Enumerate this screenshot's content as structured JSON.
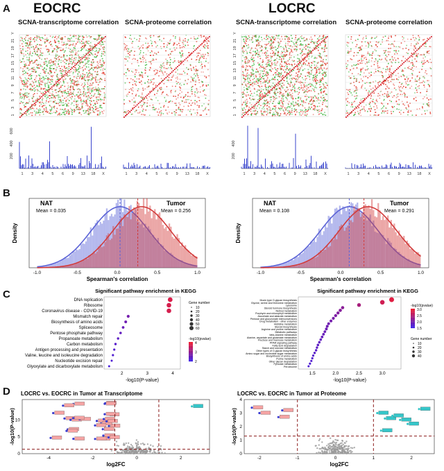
{
  "panel_letters": [
    "A",
    "B",
    "C",
    "D"
  ],
  "panelA": {
    "groups": [
      {
        "title": "EOCRC",
        "titles": [
          "SCNA-transcriptome correlation",
          "SCNA-proteome correlation"
        ],
        "hist_ticks": [
          "200",
          "400",
          "600"
        ]
      },
      {
        "title": "LOCRC",
        "titles": [
          "SCNA-transcriptome correlation",
          "SCNA-proteome correlation"
        ],
        "hist_ticks": [
          "200",
          "400"
        ]
      }
    ],
    "chrom_y_labels": [
      "1",
      "3",
      "5",
      "7",
      "9",
      "11",
      "13",
      "15",
      "17",
      "19",
      "21",
      "Y"
    ],
    "chrom_x_labels": [
      "1",
      "3",
      "4",
      "5",
      "6",
      "9",
      "13",
      "18",
      "X"
    ]
  },
  "panelB": {
    "plots": [
      {
        "nat_label": "NAT",
        "nat_mean": "Mean = 0.035",
        "tumor_label": "Tumor",
        "tumor_mean": "Mean = 0.256",
        "nat_mean_val": 0.035,
        "tumor_mean_val": 0.256
      },
      {
        "nat_label": "NAT",
        "nat_mean": "Mean = 0.108",
        "tumor_label": "Tumor",
        "tumor_mean": "Mean = 0.291",
        "nat_mean_val": 0.108,
        "tumor_mean_val": 0.291
      }
    ],
    "ylabel": "Density",
    "xlabel": "Spearman's correlation",
    "xticks": [
      "-1.0",
      "-0.5",
      "0.0",
      "0.5",
      "1.0"
    ],
    "colors": {
      "nat": "#5b63d6",
      "tumor": "#d23b3b"
    }
  },
  "panelC": {
    "title": "Significant pathway enrichment in KEGG",
    "xlabel": "-log10(P-value)",
    "left": {
      "pathways": [
        "DNA replication",
        "Ribosome",
        "Coronavirus disease - COVID-19",
        "Mismatch repair",
        "Biosynthesis of amino acids",
        "Spliceosome",
        "Pentose phosphate pathway",
        "Propanoate metabolism",
        "Carbon metabolism",
        "Antigen processing and presentation",
        "Valine, leucine and isoleucine degradation",
        "Nucleotide excision repair",
        "Glyoxylate and dicarboxylate metabolism"
      ],
      "values": [
        3.9,
        3.85,
        3.85,
        2.25,
        2.15,
        2.05,
        1.95,
        1.85,
        1.75,
        1.7,
        1.65,
        1.6,
        1.5
      ],
      "xticks": [
        "2",
        "3",
        "4"
      ],
      "legend_size_title": "Gene number",
      "legend_sizes": [
        "10",
        "20",
        "30",
        "40",
        "50",
        "60"
      ],
      "legend_color_title": "-log10(pvalue)",
      "legend_color_ticks": [
        "4",
        "3",
        "2"
      ]
    },
    "right": {
      "pathways": [
        "Mucin type O-glycan biosynthesis",
        "Glycine, serine and threonine metabolism",
        "Lysosome",
        "Steroid hormone biosynthesis",
        "Retinol metabolism",
        "Porphyrin and chlorophyll metabolism",
        "Ascorbate and aldarate metabolism",
        "Pentose and glucuronate interconversions",
        "Drug metabolism - other enzymes",
        "Histidine metabolism",
        "Steroid biosynthesis",
        "Arginine and proline metabolism",
        "Metabolic pathways",
        "beta-Alanine metabolism",
        "Alanine, aspartate and glutamate metabolism",
        "Fructose and mannose metabolism",
        "PPAR signaling pathway",
        "Fatty acid degradation",
        "Starch and sucrose metabolism",
        "Other types of O-glycan biosynthesis",
        "Amino sugar and nucleotide sugar metabolism",
        "Biosynthesis of amino acids",
        "Purine metabolism",
        "Other glycan degradation",
        "Pyruvate metabolism",
        "Peroxisome"
      ],
      "values": [
        3.2,
        3.0,
        2.5,
        2.15,
        2.1,
        2.05,
        2.0,
        1.95,
        1.9,
        1.85,
        1.82,
        1.8,
        1.77,
        1.74,
        1.71,
        1.68,
        1.65,
        1.62,
        1.6,
        1.58,
        1.55,
        1.52,
        1.5,
        1.48,
        1.45,
        1.42
      ],
      "xticks": [
        "1.5",
        "2.0",
        "2.5",
        "3.0"
      ],
      "legend_color_title": "-log10(pvalue)",
      "legend_color_ticks": [
        "3.0",
        "2.5",
        "2.0",
        "1.5"
      ],
      "legend_size_title": "Gene number",
      "legend_sizes": [
        "10",
        "20",
        "30",
        "40"
      ]
    }
  },
  "panelD": {
    "left": {
      "title": "LOCRC vs. EOCRC in Tumor at Transcriptome",
      "xlabel": "log2FC",
      "ylabel": "-log10(P-value)",
      "xticks": [
        "-4",
        "-2",
        "0",
        "2"
      ],
      "yticks": [
        "0",
        "5",
        "10"
      ]
    },
    "right": {
      "title": "LOCRC vs. EOCRC in Tumor at Proteome",
      "xlabel": "log2FC",
      "ylabel": "-log10(P-value)",
      "xticks": [
        "-2",
        "-1",
        "0",
        "1",
        "2"
      ],
      "yticks": [
        "0",
        "1",
        "2",
        "3",
        "4"
      ]
    }
  }
}
